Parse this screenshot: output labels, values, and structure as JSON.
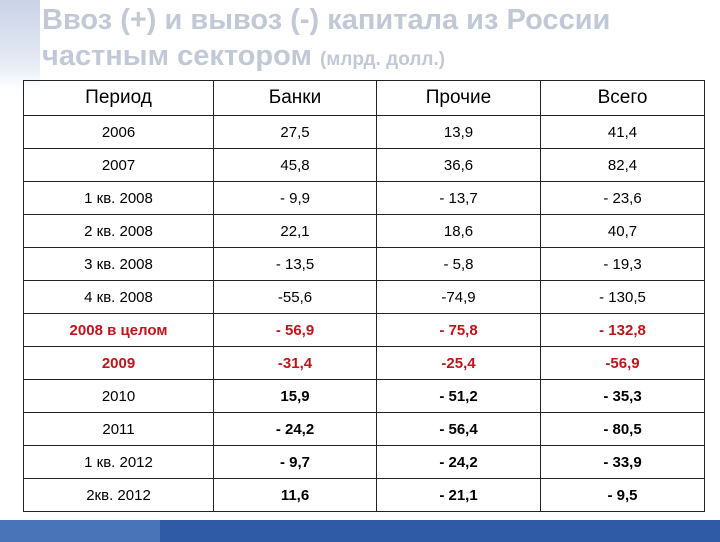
{
  "slide": {
    "title_line1": "Ввоз (+) и вывоз (-) капитала из России",
    "title_line2": "частным сектором",
    "title_unit": "(млрд. долл.)"
  },
  "table": {
    "headers": [
      "Период",
      "Банки",
      "Прочие",
      "Всего"
    ],
    "rows": [
      {
        "cells": [
          "2006",
          "27,5",
          "13,9",
          "41,4"
        ],
        "bold": false,
        "red": false
      },
      {
        "cells": [
          "2007",
          "45,8",
          "36,6",
          "82,4"
        ],
        "bold": false,
        "red": false
      },
      {
        "cells": [
          "1 кв. 2008",
          "- 9,9",
          "- 13,7",
          "- 23,6"
        ],
        "bold": false,
        "red": false
      },
      {
        "cells": [
          "2 кв. 2008",
          "22,1",
          "18,6",
          "40,7"
        ],
        "bold": false,
        "red": false
      },
      {
        "cells": [
          "3 кв. 2008",
          "- 13,5",
          "- 5,8",
          "- 19,3"
        ],
        "bold": false,
        "red": false
      },
      {
        "cells": [
          "4 кв. 2008",
          "-55,6",
          "-74,9",
          "- 130,5"
        ],
        "bold": false,
        "red": false
      },
      {
        "cells": [
          "2008 в целом",
          "- 56,9",
          "- 75,8",
          "- 132,8"
        ],
        "bold": true,
        "red": true
      },
      {
        "cells": [
          "2009",
          "-31,4",
          "-25,4",
          "-56,9"
        ],
        "bold": true,
        "red": true
      },
      {
        "cells": [
          "2010",
          "15,9",
          "- 51,2",
          "- 35,3"
        ],
        "bold": true,
        "red": false
      },
      {
        "cells": [
          "2011",
          "- 24,2",
          "- 56,4",
          "- 80,5"
        ],
        "bold": true,
        "red": false
      },
      {
        "cells": [
          "1 кв. 2012",
          "- 9,7",
          "- 24,2",
          "- 33,9"
        ],
        "bold": true,
        "red": false
      },
      {
        "cells": [
          "2кв. 2012",
          "11,6",
          "- 21,1",
          "- 9,5"
        ],
        "bold": true,
        "red": false
      }
    ]
  },
  "colors": {
    "title": "#c2c9d6",
    "highlight_red": "#c0141b",
    "bottom_bar": "#2e5aa6"
  }
}
